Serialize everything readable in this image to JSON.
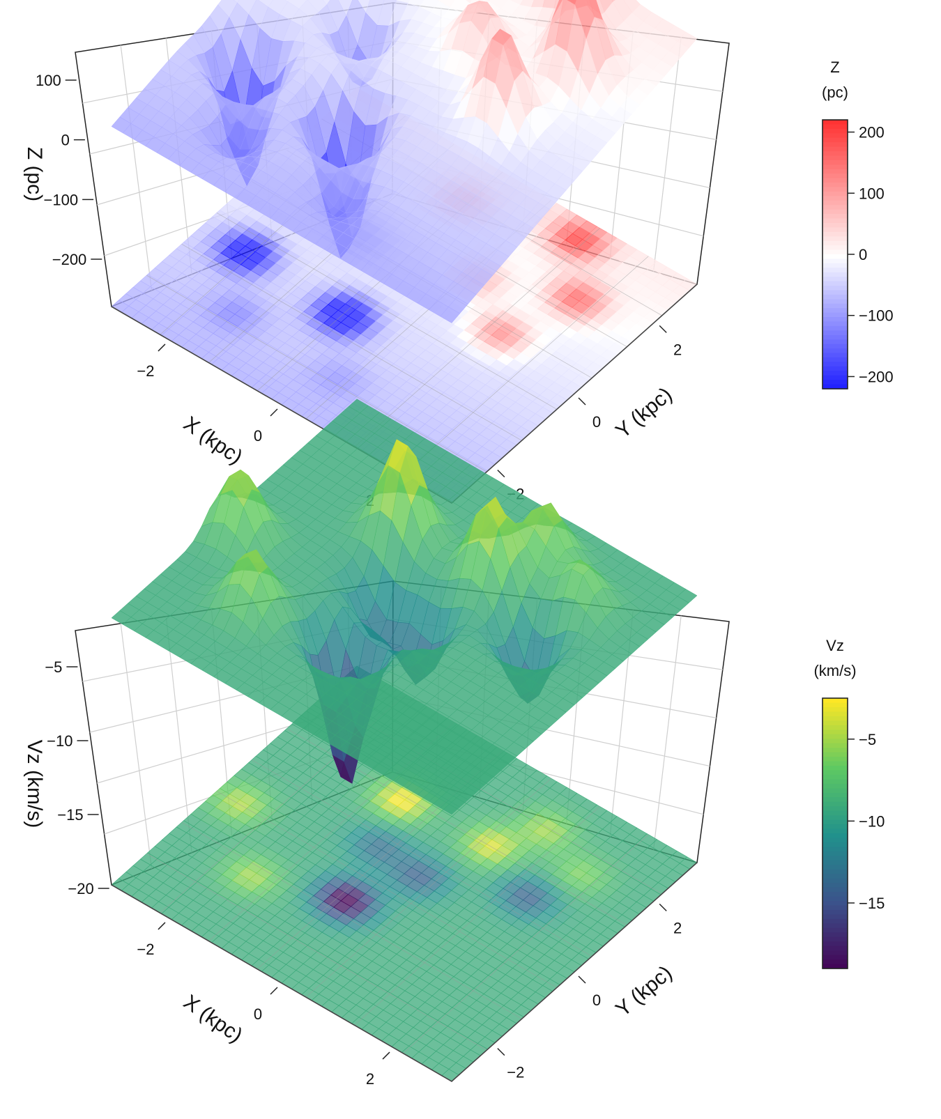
{
  "chart_data": [
    {
      "type": "3d-surface",
      "xlabel": "X (kpc)",
      "ylabel": "Y (kpc)",
      "zlabel": "Z (pc)",
      "x_ticks": [
        "−2",
        "0",
        "2"
      ],
      "y_ticks": [
        "−2",
        "0",
        "2"
      ],
      "z_ticks": [
        "100",
        "0",
        "−100",
        "−200"
      ],
      "z_tick_values": [
        100,
        0,
        -100,
        -200
      ],
      "zlim": [
        -260,
        200
      ],
      "colorbar": {
        "title_line1": "Z",
        "title_line2": "(pc)",
        "ticks": [
          "200",
          "100",
          "0",
          "−100",
          "−200"
        ],
        "tick_values": [
          200,
          100,
          0,
          -100,
          -200
        ],
        "range": [
          -220,
          220
        ],
        "colors": [
          "#1a1aff",
          "#ffffff",
          "#ff3333"
        ]
      },
      "grid": true,
      "projected_contours": true,
      "xlim": [
        -3,
        3
      ],
      "ylim": [
        -3,
        3
      ],
      "peaks": [
        {
          "x": -2.2,
          "y": -0.8,
          "z": -230
        },
        {
          "x": -0.4,
          "y": -0.9,
          "z": -250
        },
        {
          "x": -1.2,
          "y": 0.6,
          "z": -120
        },
        {
          "x": 1.5,
          "y": 0.3,
          "z": 150
        },
        {
          "x": 1.9,
          "y": 1.6,
          "z": 170
        },
        {
          "x": 1.2,
          "y": 2.6,
          "z": 195
        },
        {
          "x": -0.5,
          "y": 2.2,
          "z": 120
        },
        {
          "x": 0.6,
          "y": 1.0,
          "z": 90
        },
        {
          "x": -1.6,
          "y": -1.9,
          "z": -60
        },
        {
          "x": 0.3,
          "y": -2.0,
          "z": -40
        }
      ],
      "base_tilt": {
        "x": 0,
        "y": 55
      }
    },
    {
      "type": "3d-surface",
      "xlabel": "X (kpc)",
      "ylabel": "Y (kpc)",
      "zlabel": "Vz (km/s)",
      "x_ticks": [
        "−2",
        "0",
        "2"
      ],
      "y_ticks": [
        "−2",
        "0",
        "2"
      ],
      "z_ticks": [
        "−5",
        "−10",
        "−15",
        "−20"
      ],
      "z_tick_values": [
        -5,
        -10,
        -15,
        -20
      ],
      "zlim": [
        -20,
        -1.5
      ],
      "colorbar": {
        "title_line1": "Vz",
        "title_line2": "(km/s)",
        "ticks": [
          "−5",
          "−10",
          "−15"
        ],
        "tick_values": [
          -5,
          -10,
          -15
        ],
        "range": [
          -19,
          -2.5
        ],
        "colors": [
          "#440154",
          "#3b528b",
          "#21918c",
          "#5ec962",
          "#fde725"
        ]
      },
      "grid": true,
      "projected_contours": true,
      "xlim": [
        -3,
        3
      ],
      "ylim": [
        -3,
        3
      ],
      "base_value": -9,
      "peaks": [
        {
          "x": -0.3,
          "y": -1.0,
          "z": -19.5
        },
        {
          "x": -0.9,
          "y": 1.2,
          "z": -2.5
        },
        {
          "x": 0.6,
          "y": 1.3,
          "z": -3.5
        },
        {
          "x": -1.6,
          "y": -1.5,
          "z": -5
        },
        {
          "x": -2.6,
          "y": -0.4,
          "z": -4.5
        },
        {
          "x": 0.2,
          "y": 0.1,
          "z": -14
        },
        {
          "x": 1.0,
          "y": 2.1,
          "z": -5
        },
        {
          "x": 1.6,
          "y": 0.8,
          "z": -14
        },
        {
          "x": -0.6,
          "y": 0.2,
          "z": -13
        },
        {
          "x": 1.9,
          "y": 1.7,
          "z": -6
        }
      ]
    }
  ]
}
